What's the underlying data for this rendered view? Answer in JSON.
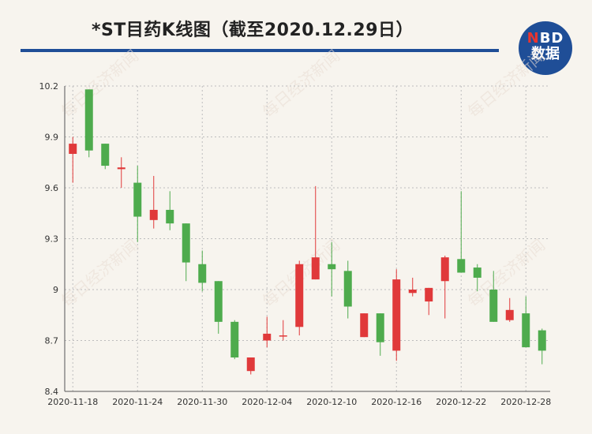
{
  "header": {
    "title": "*ST目药K线图（截至2020.12.29日）",
    "logo_brand": "NBD",
    "logo_sub": "数据",
    "watermark": "每日经济新闻"
  },
  "colors": {
    "up": "#e0393a",
    "down": "#4eab4d",
    "brand": "#1f4e97",
    "grid": "#bdbdbd"
  },
  "chart_data": {
    "type": "candlestick",
    "title": "*ST目药K线图（截至2020.12.29日）",
    "xlabel": "",
    "ylabel": "",
    "ylim": [
      8.4,
      10.2
    ],
    "yticks": [
      8.4,
      8.7,
      9,
      9.3,
      9.6,
      9.9,
      10.2
    ],
    "ytick_labels": [
      "8.4",
      "8.7",
      "9",
      "9.3",
      "9.6",
      "9.9",
      "10.2"
    ],
    "grid": true,
    "x_tick_labels": [
      {
        "index": 0,
        "label": "2020-11-18"
      },
      {
        "index": 4,
        "label": "2020-11-24"
      },
      {
        "index": 8,
        "label": "2020-11-30"
      },
      {
        "index": 12,
        "label": "2020-12-04"
      },
      {
        "index": 16,
        "label": "2020-12-10"
      },
      {
        "index": 20,
        "label": "2020-12-16"
      },
      {
        "index": 24,
        "label": "2020-12-22"
      },
      {
        "index": 28,
        "label": "2020-12-28"
      }
    ],
    "candles": [
      {
        "date": "2020-11-18",
        "open": 9.8,
        "close": 9.86,
        "high": 9.9,
        "low": 9.63
      },
      {
        "date": "2020-11-19",
        "open": 10.18,
        "close": 9.82,
        "high": 10.18,
        "low": 9.78
      },
      {
        "date": "2020-11-20",
        "open": 9.86,
        "close": 9.73,
        "high": 9.86,
        "low": 9.71
      },
      {
        "date": "2020-11-23",
        "open": 9.71,
        "close": 9.72,
        "high": 9.78,
        "low": 9.6
      },
      {
        "date": "2020-11-24",
        "open": 9.63,
        "close": 9.43,
        "high": 9.73,
        "low": 9.28
      },
      {
        "date": "2020-11-25",
        "open": 9.41,
        "close": 9.47,
        "high": 9.67,
        "low": 9.36
      },
      {
        "date": "2020-11-26",
        "open": 9.47,
        "close": 9.39,
        "high": 9.58,
        "low": 9.35
      },
      {
        "date": "2020-11-27",
        "open": 9.39,
        "close": 9.16,
        "high": 9.39,
        "low": 9.05
      },
      {
        "date": "2020-11-30",
        "open": 9.15,
        "close": 9.04,
        "high": 9.23,
        "low": 8.99
      },
      {
        "date": "2020-12-01",
        "open": 9.05,
        "close": 8.81,
        "high": 9.05,
        "low": 8.74
      },
      {
        "date": "2020-12-02",
        "open": 8.81,
        "close": 8.6,
        "high": 8.82,
        "low": 8.59
      },
      {
        "date": "2020-12-03",
        "open": 8.52,
        "close": 8.6,
        "high": 8.6,
        "low": 8.5
      },
      {
        "date": "2020-12-04",
        "open": 8.7,
        "close": 8.74,
        "high": 8.84,
        "low": 8.66
      },
      {
        "date": "2020-12-07",
        "open": 8.73,
        "close": 8.73,
        "high": 8.82,
        "low": 8.7
      },
      {
        "date": "2020-12-08",
        "open": 8.78,
        "close": 9.15,
        "high": 9.17,
        "low": 8.73
      },
      {
        "date": "2020-12-09",
        "open": 9.06,
        "close": 9.19,
        "high": 9.61,
        "low": 9.06
      },
      {
        "date": "2020-12-10",
        "open": 9.15,
        "close": 9.12,
        "high": 9.28,
        "low": 8.96
      },
      {
        "date": "2020-12-11",
        "open": 9.11,
        "close": 8.9,
        "high": 9.17,
        "low": 8.83
      },
      {
        "date": "2020-12-14",
        "open": 8.72,
        "close": 8.86,
        "high": 8.86,
        "low": 8.72
      },
      {
        "date": "2020-12-15",
        "open": 8.86,
        "close": 8.69,
        "high": 8.86,
        "low": 8.61
      },
      {
        "date": "2020-12-16",
        "open": 8.64,
        "close": 9.06,
        "high": 9.12,
        "low": 8.58
      },
      {
        "date": "2020-12-17",
        "open": 8.98,
        "close": 9.0,
        "high": 9.07,
        "low": 8.96
      },
      {
        "date": "2020-12-18",
        "open": 8.93,
        "close": 9.01,
        "high": 9.01,
        "low": 8.85
      },
      {
        "date": "2020-12-21",
        "open": 9.05,
        "close": 9.19,
        "high": 9.2,
        "low": 8.83
      },
      {
        "date": "2020-12-22",
        "open": 9.18,
        "close": 9.1,
        "high": 9.58,
        "low": 9.1
      },
      {
        "date": "2020-12-23",
        "open": 9.13,
        "close": 9.07,
        "high": 9.15,
        "low": 8.99
      },
      {
        "date": "2020-12-24",
        "open": 9.0,
        "close": 8.81,
        "high": 9.11,
        "low": 8.81
      },
      {
        "date": "2020-12-25",
        "open": 8.82,
        "close": 8.88,
        "high": 8.95,
        "low": 8.81
      },
      {
        "date": "2020-12-28",
        "open": 8.86,
        "close": 8.66,
        "high": 8.96,
        "low": 8.66
      },
      {
        "date": "2020-12-29",
        "open": 8.76,
        "close": 8.64,
        "high": 8.77,
        "low": 8.56
      }
    ]
  }
}
